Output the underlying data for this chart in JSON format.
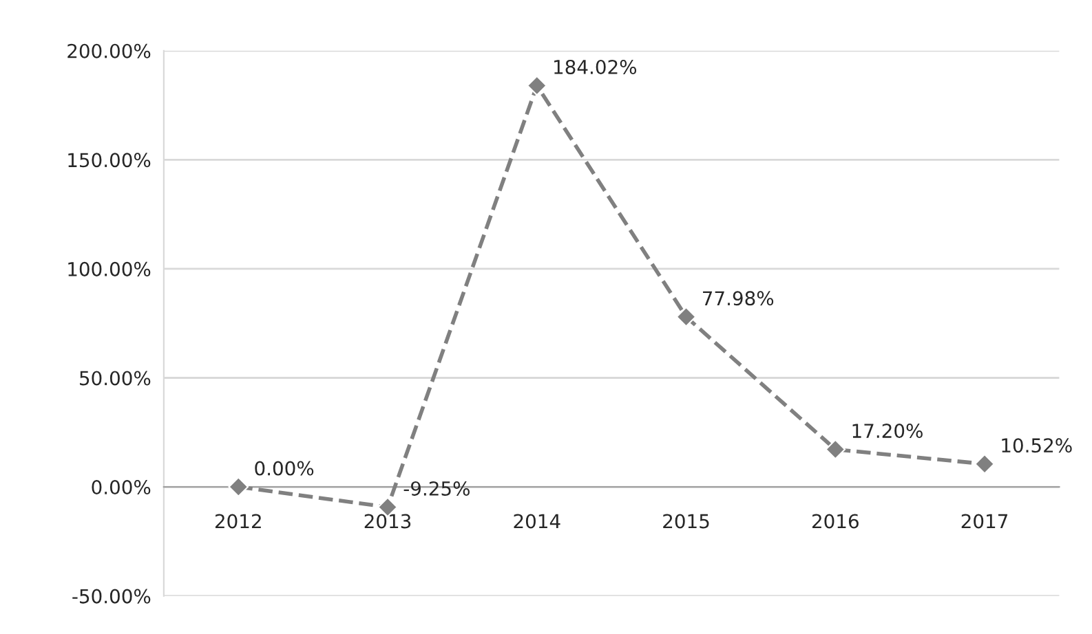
{
  "chart_data": {
    "type": "line",
    "categories": [
      "2012",
      "2013",
      "2014",
      "2015",
      "2016",
      "2017"
    ],
    "series": [
      {
        "color": "#808080",
        "values": [
          0,
          -9.25,
          184.02,
          77.98,
          17.2,
          10.52
        ],
        "value_labels": [
          "0.00%",
          "-9.25%",
          "184.02%",
          "77.98%",
          "17.20%",
          "10.52%"
        ]
      }
    ],
    "ylim": [
      -50,
      200
    ],
    "yticks": [
      {
        "value": -50,
        "label": "-50.00%"
      },
      {
        "value": 0,
        "label": "0.00%"
      },
      {
        "value": 50,
        "label": "50.00%"
      },
      {
        "value": 100,
        "label": "100.00%"
      },
      {
        "value": 150,
        "label": "150.00%"
      },
      {
        "value": 200,
        "label": "200.00%"
      }
    ],
    "grid": "y",
    "marker": "diamond",
    "line_style": "dashed",
    "legend": false
  }
}
